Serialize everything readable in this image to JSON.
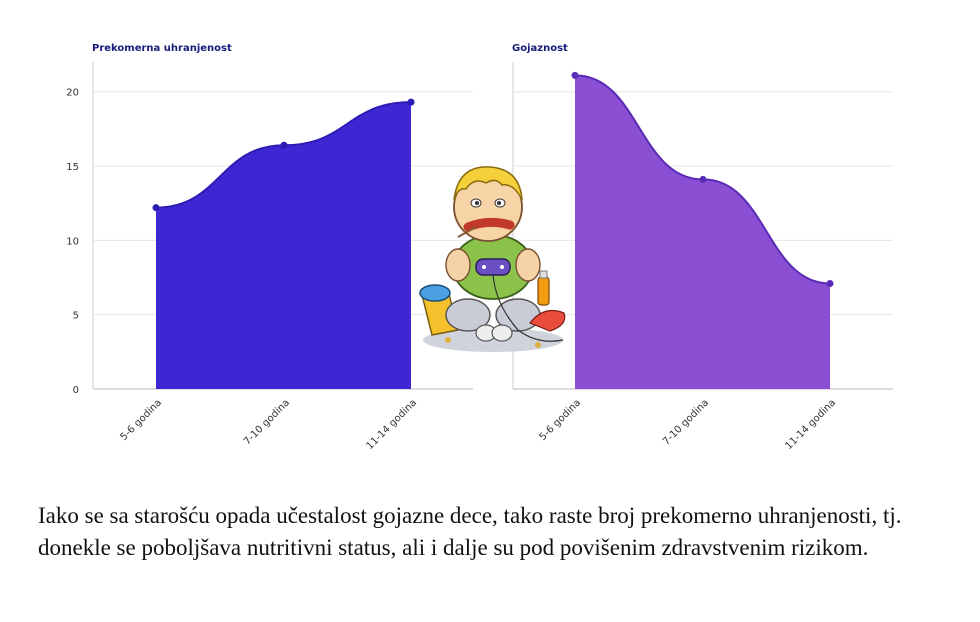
{
  "chart_data": [
    {
      "type": "area",
      "title": "Prekomerna uhranjenost",
      "categories": [
        "5-6 godina",
        "7-10 godina",
        "11-14 godina"
      ],
      "values": [
        12.2,
        16.4,
        19.3
      ],
      "ylim": [
        0,
        22
      ],
      "yticks": [
        0,
        5,
        10,
        15,
        20
      ],
      "grid": true,
      "colors": {
        "fill": "#3d27d3",
        "line": "#2d1bb5",
        "title": "#1a1a7a"
      }
    },
    {
      "type": "area",
      "title": "Gojaznost",
      "categories": [
        "5-6 godina",
        "7-10 godina",
        "11-14 godina"
      ],
      "values": [
        21.1,
        14.1,
        7.1
      ],
      "ylim": [
        0,
        22
      ],
      "grid": true,
      "colors": {
        "fill": "#8a4fd2",
        "line": "#5a2bb5",
        "title": "#1a1a7a"
      }
    }
  ],
  "illustration": {
    "icon": "boy-eating-gaming-icon"
  },
  "caption": "Iako se sa starošću opada učestalost gojazne dece, tako raste broj prekomerno uhranjenosti, tj. donekle se poboljšava nutritivni status, ali i dalje su pod povišenim zdravstvenim rizikom."
}
